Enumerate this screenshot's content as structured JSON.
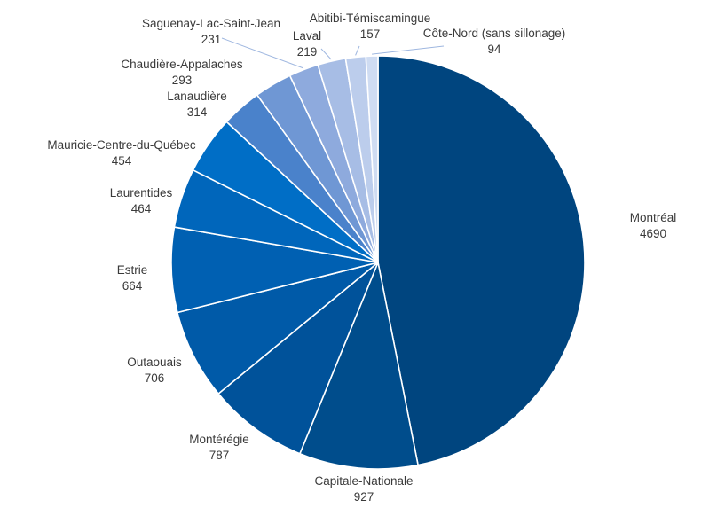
{
  "chart_data": {
    "type": "pie",
    "title": "",
    "start": "12 o'clock",
    "direction": "clockwise",
    "slices": [
      {
        "label": "Montréal",
        "value": 4690,
        "color": "#00457f"
      },
      {
        "label": "Capitale-Nationale",
        "value": 927,
        "color": "#004d8c"
      },
      {
        "label": "Montérégie",
        "value": 787,
        "color": "#00529a"
      },
      {
        "label": "Outaouais",
        "value": 706,
        "color": "#005aa8"
      },
      {
        "label": "Estrie",
        "value": 664,
        "color": "#0060b2"
      },
      {
        "label": "Laurentides",
        "value": 464,
        "color": "#0066bb"
      },
      {
        "label": "Mauricie-Centre-du-Québec",
        "value": 454,
        "color": "#006ec6"
      },
      {
        "label": "Lanaudière",
        "value": 314,
        "color": "#4a82cb"
      },
      {
        "label": "Chaudière-Appalaches",
        "value": 293,
        "color": "#6f97d4"
      },
      {
        "label": "Saguenay-Lac-Saint-Jean",
        "value": 231,
        "color": "#8eaadd"
      },
      {
        "label": "Laval",
        "value": 219,
        "color": "#a7bde5"
      },
      {
        "label": "Abitibi-Témiscamingue",
        "value": 157,
        "color": "#bccdec"
      },
      {
        "label": "Côte-Nord (sans sillonage)",
        "value": 94,
        "color": "#cfdcf2"
      }
    ]
  }
}
